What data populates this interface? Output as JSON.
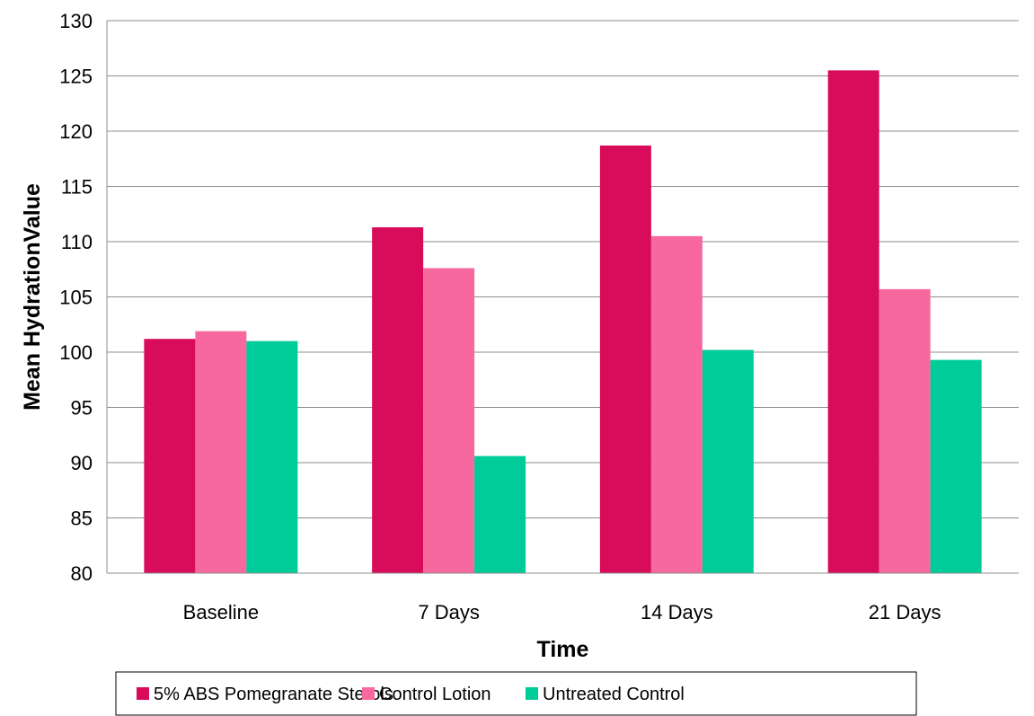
{
  "chart_data": {
    "type": "bar",
    "title": "",
    "xlabel": "Time",
    "ylabel": "Mean HydrationValue",
    "categories": [
      "Baseline",
      "7 Days",
      "14 Days",
      "21 Days"
    ],
    "series": [
      {
        "name": "5% ABS Pomegranate Sterols",
        "color": "#d90b5b",
        "values": [
          101.2,
          111.3,
          118.7,
          125.5
        ]
      },
      {
        "name": "Control Lotion",
        "color": "#f7699e",
        "values": [
          101.9,
          107.6,
          110.5,
          105.7
        ]
      },
      {
        "name": "Untreated Control",
        "color": "#00cc99",
        "values": [
          101.0,
          90.6,
          100.2,
          99.3
        ]
      }
    ],
    "ylim": [
      80,
      130
    ],
    "yticks": [
      "80",
      "85",
      "90",
      "95",
      "100",
      "105",
      "110",
      "115",
      "120",
      "125",
      "130"
    ],
    "grid": true,
    "legend_position": "bottom"
  }
}
